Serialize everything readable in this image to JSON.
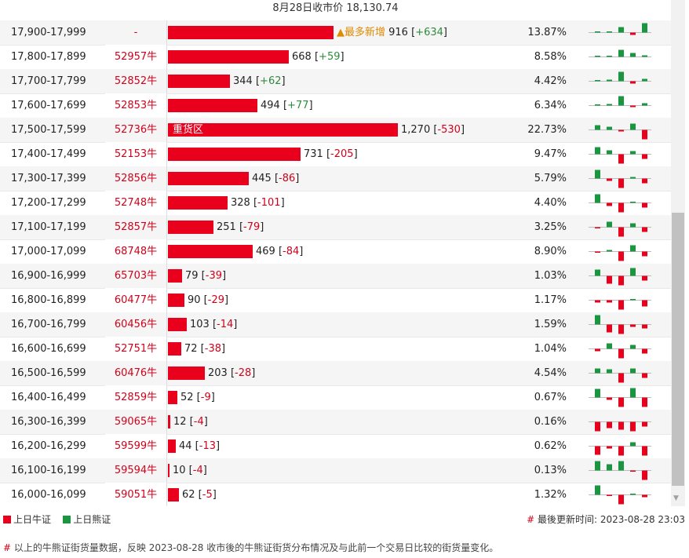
{
  "header": {
    "closing_label": "8月28日收市价",
    "closing_price": "18,130.74"
  },
  "inbar_label": "重货区",
  "top_tag": "▲最多新增",
  "rows": [
    {
      "range": "17,900-17,999",
      "code": "-",
      "bar": 916,
      "count": "916",
      "delta": "+634",
      "pct": "13.87%",
      "tag": true,
      "spark": [
        0,
        1,
        7,
        -3,
        12
      ]
    },
    {
      "range": "17,800-17,899",
      "code": "52957牛",
      "bar": 668,
      "count": "668",
      "delta": "+59",
      "pct": "8.58%",
      "spark": [
        0,
        0,
        9,
        5,
        2
      ]
    },
    {
      "range": "17,700-17,799",
      "code": "52852牛",
      "bar": 344,
      "count": "344",
      "delta": "+62",
      "pct": "4.42%",
      "spark": [
        0,
        2,
        12,
        -3,
        3
      ]
    },
    {
      "range": "17,600-17,699",
      "code": "52853牛",
      "bar": 494,
      "count": "494",
      "delta": "+77",
      "pct": "6.34%",
      "spark": [
        0,
        2,
        12,
        -2,
        3
      ]
    },
    {
      "range": "17,500-17,599",
      "code": "52736牛",
      "bar": 1270,
      "count": "1,270",
      "delta": "-530",
      "pct": "22.73%",
      "inbar": true,
      "spark": [
        6,
        4,
        -2,
        8,
        -12
      ]
    },
    {
      "range": "17,400-17,499",
      "code": "52153牛",
      "bar": 731,
      "count": "731",
      "delta": "-205",
      "pct": "9.47%",
      "spark": [
        9,
        5,
        -12,
        4,
        -6
      ]
    },
    {
      "range": "17,300-17,399",
      "code": "52856牛",
      "bar": 445,
      "count": "445",
      "delta": "-86",
      "pct": "5.79%",
      "spark": [
        11,
        -3,
        -12,
        2,
        -6
      ]
    },
    {
      "range": "17,200-17,299",
      "code": "52748牛",
      "bar": 328,
      "count": "328",
      "delta": "-101",
      "pct": "4.40%",
      "spark": [
        11,
        -4,
        -12,
        1,
        -6
      ]
    },
    {
      "range": "17,100-17,199",
      "code": "52857牛",
      "bar": 251,
      "count": "251",
      "delta": "-79",
      "pct": "3.25%",
      "spark": [
        -1,
        7,
        -12,
        5,
        -6
      ]
    },
    {
      "range": "17,000-17,099",
      "code": "68748牛",
      "bar": 469,
      "count": "469",
      "delta": "-84",
      "pct": "8.90%",
      "spark": [
        -1,
        2,
        -12,
        8,
        -6
      ]
    },
    {
      "range": "16,900-16,999",
      "code": "65703牛",
      "bar": 79,
      "count": "79",
      "delta": "-39",
      "pct": "1.03%",
      "spark": [
        8,
        -10,
        -12,
        10,
        -6
      ]
    },
    {
      "range": "16,800-16,899",
      "code": "60477牛",
      "bar": 90,
      "count": "90",
      "delta": "-29",
      "pct": "1.17%",
      "spark": [
        -3,
        -3,
        -12,
        1,
        -8
      ]
    },
    {
      "range": "16,700-16,799",
      "code": "60456牛",
      "bar": 103,
      "count": "103",
      "delta": "-14",
      "pct": "1.59%",
      "spark": [
        12,
        -10,
        -12,
        -3,
        -5
      ]
    },
    {
      "range": "16,600-16,699",
      "code": "52751牛",
      "bar": 72,
      "count": "72",
      "delta": "-38",
      "pct": "1.04%",
      "spark": [
        -3,
        7,
        -12,
        5,
        -6
      ]
    },
    {
      "range": "16,500-16,599",
      "code": "60476牛",
      "bar": 203,
      "count": "203",
      "delta": "-28",
      "pct": "4.54%",
      "spark": [
        6,
        5,
        -12,
        6,
        -6
      ]
    },
    {
      "range": "16,400-16,499",
      "code": "52859牛",
      "bar": 52,
      "count": "52",
      "delta": "-9",
      "pct": "0.67%",
      "spark": [
        11,
        -3,
        -12,
        12,
        -12
      ]
    },
    {
      "range": "16,300-16,399",
      "code": "59065牛",
      "bar": 12,
      "count": "12",
      "delta": "-4",
      "pct": "0.16%",
      "spark": [
        -12,
        -8,
        -10,
        -12,
        -6
      ]
    },
    {
      "range": "16,200-16,299",
      "code": "59599牛",
      "bar": 44,
      "count": "44",
      "delta": "-13",
      "pct": "0.62%",
      "spark": [
        -11,
        -3,
        -12,
        5,
        -12
      ]
    },
    {
      "range": "16,100-16,199",
      "code": "59594牛",
      "bar": 10,
      "count": "10",
      "delta": "-4",
      "pct": "0.13%",
      "spark": [
        12,
        8,
        12,
        -1,
        -12
      ]
    },
    {
      "range": "16,000-16,099",
      "code": "59051牛",
      "bar": 62,
      "count": "62",
      "delta": "-5",
      "pct": "1.32%",
      "spark": [
        12,
        -1,
        -12,
        1,
        -3
      ]
    }
  ],
  "legend": {
    "bull": "上日牛证",
    "bear": "上日熊证",
    "bull_color": "#e8001c",
    "bear_color": "#1a9641"
  },
  "updated": {
    "hash": "#",
    "label": "最後更新时间:",
    "time": "2023-08-28 23:03"
  },
  "footnote": {
    "hash": "#",
    "text": "以上的牛熊证街货量数据，反映 2023-08-28 收市後的牛熊证街货分布情况及与此前一个交易日比较的街货量变化。"
  }
}
